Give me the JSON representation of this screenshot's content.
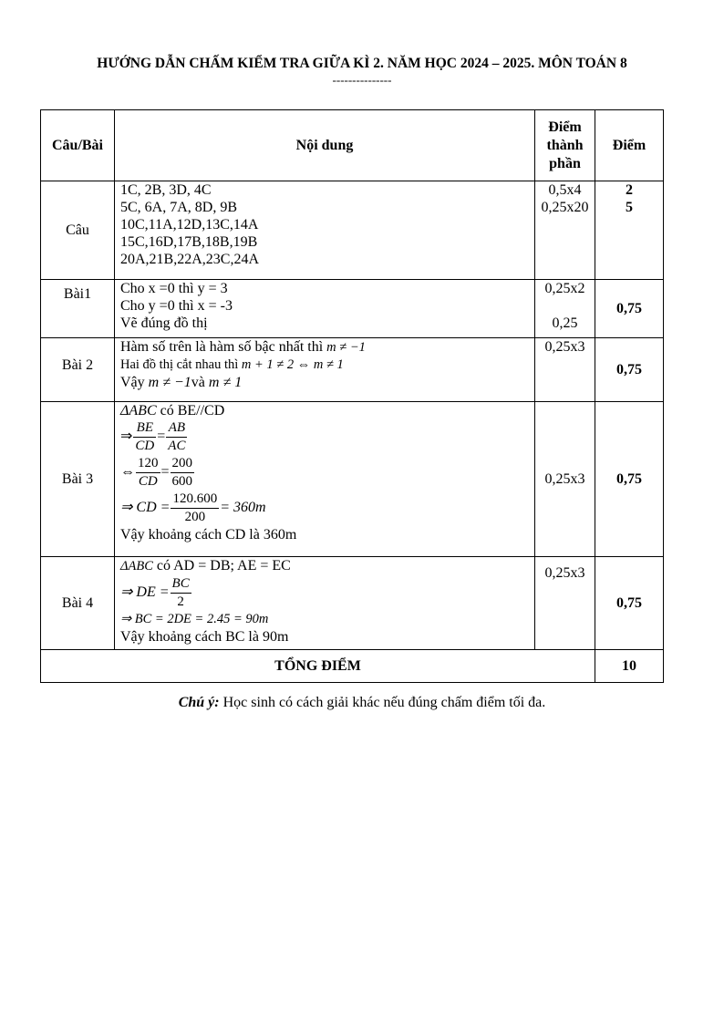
{
  "title": "HƯỚNG DẪN CHẤM KIỂM TRA GIỮA KÌ 2. NĂM HỌC 2024 – 2025. MÔN TOÁN 8",
  "separator": "---------------",
  "header": {
    "col1": "Câu/Bài",
    "col2": "Nội dung",
    "col3a": "Điểm",
    "col3b": "thành",
    "col3c": "phần",
    "col4": "Điểm"
  },
  "cau": {
    "label": "Câu",
    "lines": [
      "1C, 2B, 3D, 4C",
      "5C, 6A, 7A, 8D, 9B",
      "10C,11A,12D,13C,14A",
      "15C,16D,17B,18B,19B",
      "20A,21B,22A,23C,24A"
    ],
    "parts": [
      "0,5x4",
      "0,25x20"
    ],
    "scores": [
      "2",
      "5"
    ]
  },
  "bai1": {
    "label": "Bài1",
    "lines": [
      "Cho x =0 thì y = 3",
      "Cho y =0 thì x = -3",
      "Vẽ đúng đồ thị"
    ],
    "parts": [
      "0,25x2",
      "0,25"
    ],
    "score": "0,75"
  },
  "bai2": {
    "label": "Bài 2",
    "line1_text": "Hàm số trên là hàm số bậc nhất  thì ",
    "line1_math": "m ≠ −1",
    "line2_text": "Hai đồ thị cắt nhau thì ",
    "line2_math": "m + 1 ≠ 2 ⇔ m ≠ 1",
    "line3_text1": "Vậy ",
    "line3_math1": "m ≠ −1",
    "line3_text2": "và ",
    "line3_math2": "m ≠ 1",
    "part": "0,25x3",
    "score": "0,75"
  },
  "bai3": {
    "label": "Bài 3",
    "l1_math": "ΔABC",
    "l1_text": " có BE//CD",
    "l2_pre": "⇒",
    "l2_f1n": "BE",
    "l2_f1d": "CD",
    "l2_f2n": "AB",
    "l2_f2d": "AC",
    "l3_pre": "⇔",
    "l3_f1n": "120",
    "l3_f1d": "CD",
    "l3_f2n": "200",
    "l3_f2d": "600",
    "l4_pre": "⇒ CD =",
    "l4_fn": "120.600",
    "l4_fd": "200",
    "l4_post": "= 360m",
    "l5": "Vậy khoảng cách CD là 360m",
    "part": "0,25x3",
    "score": "0,75"
  },
  "bai4": {
    "label": "Bài 4",
    "l1_math": "ΔABC",
    "l1_text": " có AD = DB; AE = EC",
    "l2_pre": "⇒ DE =",
    "l2_fn": "BC",
    "l2_fd": "2",
    "l3": "⇒ BC = 2DE = 2.45 = 90m",
    "l4": "Vậy khoảng cách BC là 90m",
    "part": "0,25x3",
    "score": "0,75"
  },
  "total": {
    "label": "TỔNG ĐIỂM",
    "score": "10"
  },
  "note": {
    "label": "Chú ý:",
    "text": " Học sinh có cách giải khác nếu đúng chấm điểm tối đa."
  }
}
